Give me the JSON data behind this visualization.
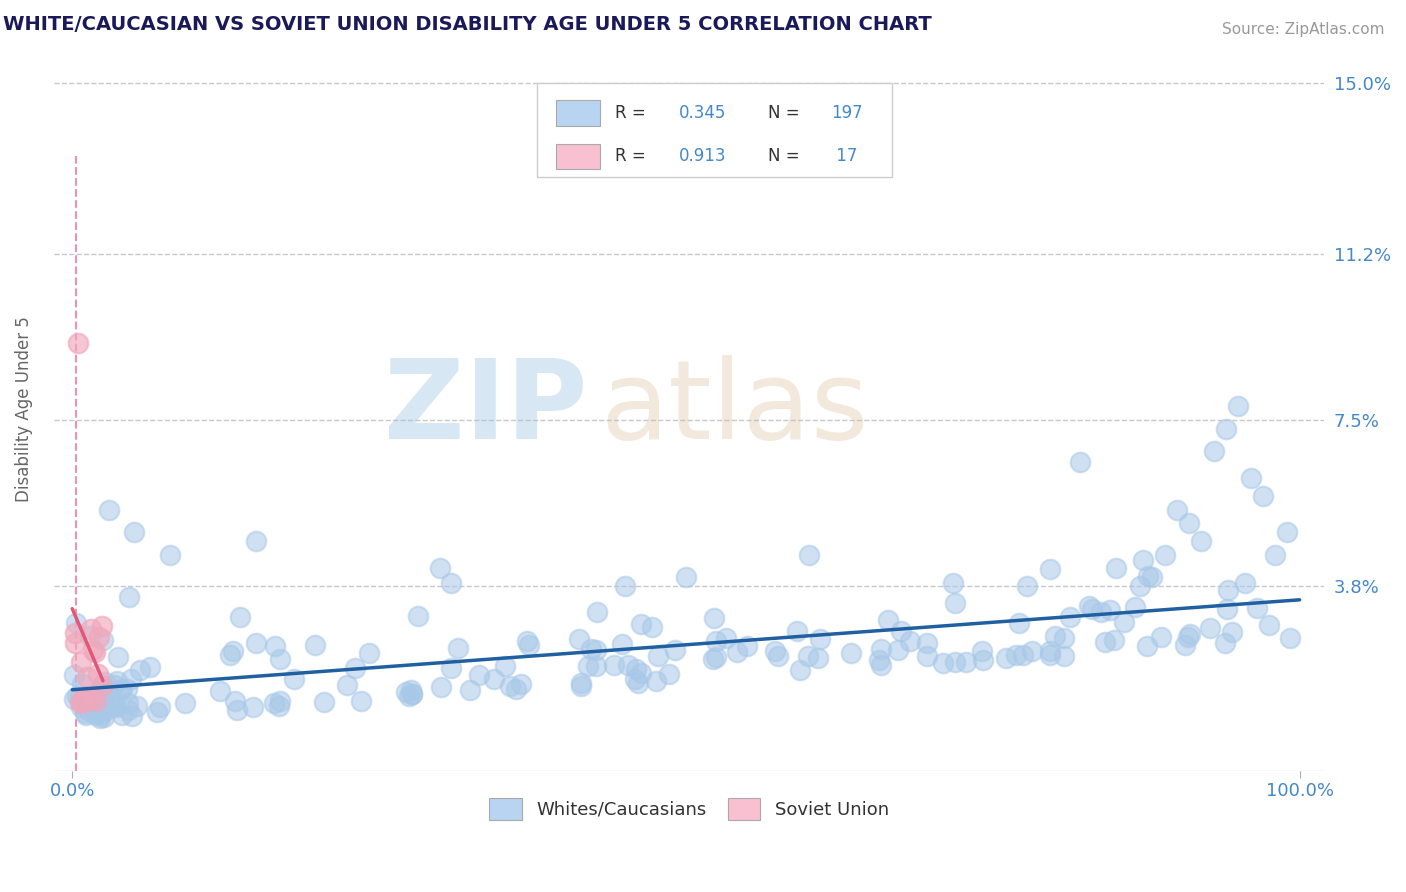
{
  "title": "WHITE/CAUCASIAN VS SOVIET UNION DISABILITY AGE UNDER 5 CORRELATION CHART",
  "source": "Source: ZipAtlas.com",
  "ylabel": "Disability Age Under 5",
  "yticks": [
    0,
    3.8,
    7.5,
    11.2,
    15.0
  ],
  "ytick_labels": [
    "",
    "3.8%",
    "7.5%",
    "11.2%",
    "15.0%"
  ],
  "xtick_labels": [
    "0.0%",
    "100.0%"
  ],
  "blue_scatter_color": "#a8c8e8",
  "pink_scatter_color": "#f0a8bc",
  "blue_line_color": "#2060a0",
  "pink_line_color": "#e05878",
  "blue_legend_fill": "#b8d4f0",
  "pink_legend_fill": "#f8c0d0",
  "background_color": "#ffffff",
  "grid_color": "#bbbbbb",
  "title_color": "#1a1a5a",
  "axis_label_color": "#666666",
  "tick_label_color": "#4488cc",
  "source_color": "#999999",
  "legend_text_color": "#333333",
  "watermark_zip_color": "#c8ddf0",
  "watermark_atlas_color": "#e8d8c0",
  "pink_vline_color": "#e878a0",
  "R_blue": "0.345",
  "N_blue": "197",
  "R_pink": "0.913",
  "N_pink": "17"
}
